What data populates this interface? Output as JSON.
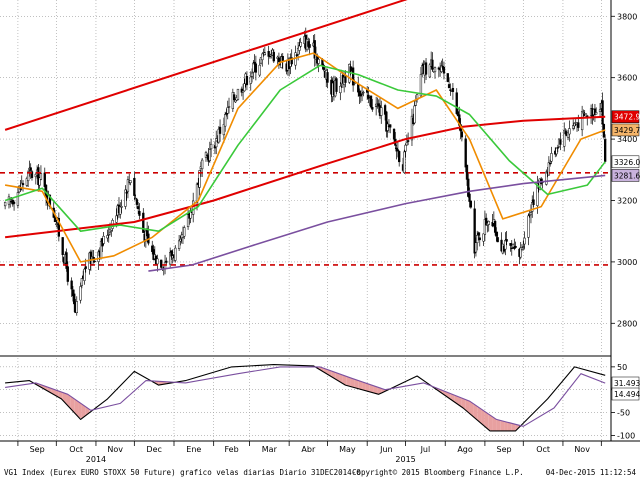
{
  "chart_data": [
    {
      "type": "candlestick",
      "panel": "price",
      "x_months": [
        "Sep",
        "Oct",
        "Nov",
        "Dec",
        "Ene",
        "Feb",
        "Mar",
        "Abr",
        "May",
        "Jun",
        "Jul",
        "Ago",
        "Sep",
        "Oct",
        "Nov"
      ],
      "x_years": [
        "2014",
        "2015"
      ],
      "y_ticks": [
        2800,
        3000,
        3200,
        3400,
        3600,
        3800
      ],
      "ylim": [
        2700,
        3840
      ],
      "grid": true,
      "price_path": [
        [
          "2014-08-22",
          3175
        ],
        [
          "2014-09-01",
          3230
        ],
        [
          "2014-09-10",
          3290
        ],
        [
          "2014-09-19",
          3270
        ],
        [
          "2014-09-30",
          3150
        ],
        [
          "2014-10-08",
          3000
        ],
        [
          "2014-10-16",
          2830
        ],
        [
          "2014-10-24",
          2990
        ],
        [
          "2014-11-05",
          3050
        ],
        [
          "2014-11-19",
          3180
        ],
        [
          "2014-11-28",
          3280
        ],
        [
          "2014-12-08",
          3100
        ],
        [
          "2014-12-16",
          3020
        ],
        [
          "2014-12-24",
          3000
        ],
        [
          "2015-01-06",
          3050
        ],
        [
          "2015-01-13",
          3150
        ],
        [
          "2015-01-22",
          3300
        ],
        [
          "2015-02-03",
          3400
        ],
        [
          "2015-02-16",
          3530
        ],
        [
          "2015-03-02",
          3620
        ],
        [
          "2015-03-16",
          3690
        ],
        [
          "2015-03-30",
          3640
        ],
        [
          "2015-04-13",
          3720
        ],
        [
          "2015-04-22",
          3680
        ],
        [
          "2015-05-04",
          3560
        ],
        [
          "2015-05-18",
          3620
        ],
        [
          "2015-05-29",
          3540
        ],
        [
          "2015-06-10",
          3500
        ],
        [
          "2015-06-18",
          3430
        ],
        [
          "2015-06-29",
          3320
        ],
        [
          "2015-07-07",
          3470
        ],
        [
          "2015-07-14",
          3620
        ],
        [
          "2015-07-23",
          3650
        ],
        [
          "2015-08-05",
          3580
        ],
        [
          "2015-08-13",
          3430
        ],
        [
          "2015-08-24",
          3050
        ],
        [
          "2015-09-04",
          3150
        ],
        [
          "2015-09-14",
          3060
        ],
        [
          "2015-09-28",
          3020
        ],
        [
          "2015-10-08",
          3200
        ],
        [
          "2015-10-19",
          3300
        ],
        [
          "2015-10-29",
          3400
        ],
        [
          "2015-11-10",
          3450
        ],
        [
          "2015-11-20",
          3480
        ],
        [
          "2015-12-01",
          3520
        ],
        [
          "2015-12-04",
          3330
        ]
      ],
      "series": [
        {
          "name": "3472.92",
          "color": "#e00000",
          "last": 3472.92,
          "points": [
            [
              "2014-08-22",
              3080
            ],
            [
              "2014-12-01",
              3130
            ],
            [
              "2015-02-01",
              3200
            ],
            [
              "2015-05-01",
              3320
            ],
            [
              "2015-07-01",
              3400
            ],
            [
              "2015-08-15",
              3440
            ],
            [
              "2015-10-01",
              3460
            ],
            [
              "2015-12-04",
              3472.92
            ]
          ]
        },
        {
          "name": "3429.75",
          "color": "#f08c00",
          "last": 3429.75,
          "points": [
            [
              "2014-08-22",
              3250
            ],
            [
              "2014-09-20",
              3230
            ],
            [
              "2014-10-20",
              3000
            ],
            [
              "2014-11-15",
              3020
            ],
            [
              "2014-12-15",
              3080
            ],
            [
              "2015-01-20",
              3200
            ],
            [
              "2015-02-20",
              3500
            ],
            [
              "2015-03-25",
              3650
            ],
            [
              "2015-04-20",
              3680
            ],
            [
              "2015-05-25",
              3580
            ],
            [
              "2015-06-25",
              3500
            ],
            [
              "2015-07-25",
              3560
            ],
            [
              "2015-08-20",
              3400
            ],
            [
              "2015-09-15",
              3140
            ],
            [
              "2015-10-15",
              3180
            ],
            [
              "2015-11-15",
              3400
            ],
            [
              "2015-12-04",
              3429.75
            ]
          ]
        },
        {
          "name": "3326.00",
          "color": "#3ac93a",
          "last": 3326.0,
          "points": [
            [
              "2014-08-22",
              3200
            ],
            [
              "2014-09-20",
              3240
            ],
            [
              "2014-10-20",
              3100
            ],
            [
              "2014-11-20",
              3120
            ],
            [
              "2014-12-20",
              3100
            ],
            [
              "2015-01-20",
              3180
            ],
            [
              "2015-02-20",
              3380
            ],
            [
              "2015-03-25",
              3560
            ],
            [
              "2015-04-25",
              3640
            ],
            [
              "2015-05-25",
              3610
            ],
            [
              "2015-06-25",
              3560
            ],
            [
              "2015-07-25",
              3540
            ],
            [
              "2015-08-20",
              3480
            ],
            [
              "2015-09-20",
              3330
            ],
            [
              "2015-10-20",
              3220
            ],
            [
              "2015-11-20",
              3250
            ],
            [
              "2015-12-04",
              3326.0
            ]
          ]
        },
        {
          "name": "3281.65",
          "color": "#7a4f9f",
          "last": 3281.65,
          "points": [
            [
              "2014-12-12",
              2970
            ],
            [
              "2015-01-15",
              2990
            ],
            [
              "2015-03-01",
              3050
            ],
            [
              "2015-05-01",
              3130
            ],
            [
              "2015-07-01",
              3190
            ],
            [
              "2015-08-20",
              3230
            ],
            [
              "2015-10-01",
              3255
            ],
            [
              "2015-12-04",
              3281.65
            ]
          ]
        }
      ],
      "annotations": [
        {
          "kind": "trendline",
          "color": "#e00000",
          "from": [
            "2014-08-22",
            3430
          ],
          "to": [
            "2015-07-20",
            3880
          ]
        },
        {
          "kind": "dashed-level",
          "color": "#cc0000",
          "value": 3290
        },
        {
          "kind": "dashed-level",
          "color": "#cc0000",
          "value": 2990
        }
      ],
      "current_price_badge": {
        "value": 3326.0,
        "text": "3326.00"
      }
    },
    {
      "type": "line",
      "panel": "oscillator",
      "y_ticks": [
        50,
        0,
        -50,
        -100
      ],
      "ylim": [
        -110,
        65
      ],
      "grid": true,
      "series": [
        {
          "name": "31.4934",
          "color": "#000000",
          "last": 31.4934,
          "points": [
            [
              "2014-08-22",
              15
            ],
            [
              "2014-09-10",
              20
            ],
            [
              "2014-10-05",
              -20
            ],
            [
              "2014-10-20",
              -65
            ],
            [
              "2014-11-10",
              -20
            ],
            [
              "2014-12-01",
              40
            ],
            [
              "2014-12-20",
              10
            ],
            [
              "2015-01-10",
              20
            ],
            [
              "2015-02-15",
              50
            ],
            [
              "2015-03-20",
              55
            ],
            [
              "2015-04-20",
              52
            ],
            [
              "2015-05-15",
              10
            ],
            [
              "2015-06-10",
              -10
            ],
            [
              "2015-07-10",
              30
            ],
            [
              "2015-08-15",
              -40
            ],
            [
              "2015-09-05",
              -90
            ],
            [
              "2015-09-25",
              -90
            ],
            [
              "2015-10-20",
              -20
            ],
            [
              "2015-11-10",
              50
            ],
            [
              "2015-12-04",
              31.4934
            ]
          ]
        },
        {
          "name": "14.494",
          "color": "#7a4f9f",
          "last": 14.494,
          "points": [
            [
              "2014-08-22",
              5
            ],
            [
              "2014-09-15",
              15
            ],
            [
              "2014-10-10",
              -10
            ],
            [
              "2014-10-28",
              -45
            ],
            [
              "2014-11-20",
              -30
            ],
            [
              "2014-12-10",
              20
            ],
            [
              "2015-01-10",
              15
            ],
            [
              "2015-02-20",
              35
            ],
            [
              "2015-03-25",
              50
            ],
            [
              "2015-04-25",
              50
            ],
            [
              "2015-05-20",
              25
            ],
            [
              "2015-06-15",
              0
            ],
            [
              "2015-07-15",
              15
            ],
            [
              "2015-08-20",
              -25
            ],
            [
              "2015-09-10",
              -65
            ],
            [
              "2015-10-01",
              -80
            ],
            [
              "2015-10-25",
              -40
            ],
            [
              "2015-11-15",
              35
            ],
            [
              "2015-12-04",
              14.494
            ]
          ]
        }
      ],
      "badges": [
        {
          "text": "31.4934"
        },
        {
          "text": "14.494"
        }
      ]
    }
  ],
  "footer": {
    "left": "VG1 Index (Eurex EURO STOXX 50 Future) grafico velas diarias  Diario 31DEC2014-0",
    "center": "Copyright© 2015 Bloomberg Finance L.P.",
    "right": "04-Dec-2015  11:12:54"
  }
}
